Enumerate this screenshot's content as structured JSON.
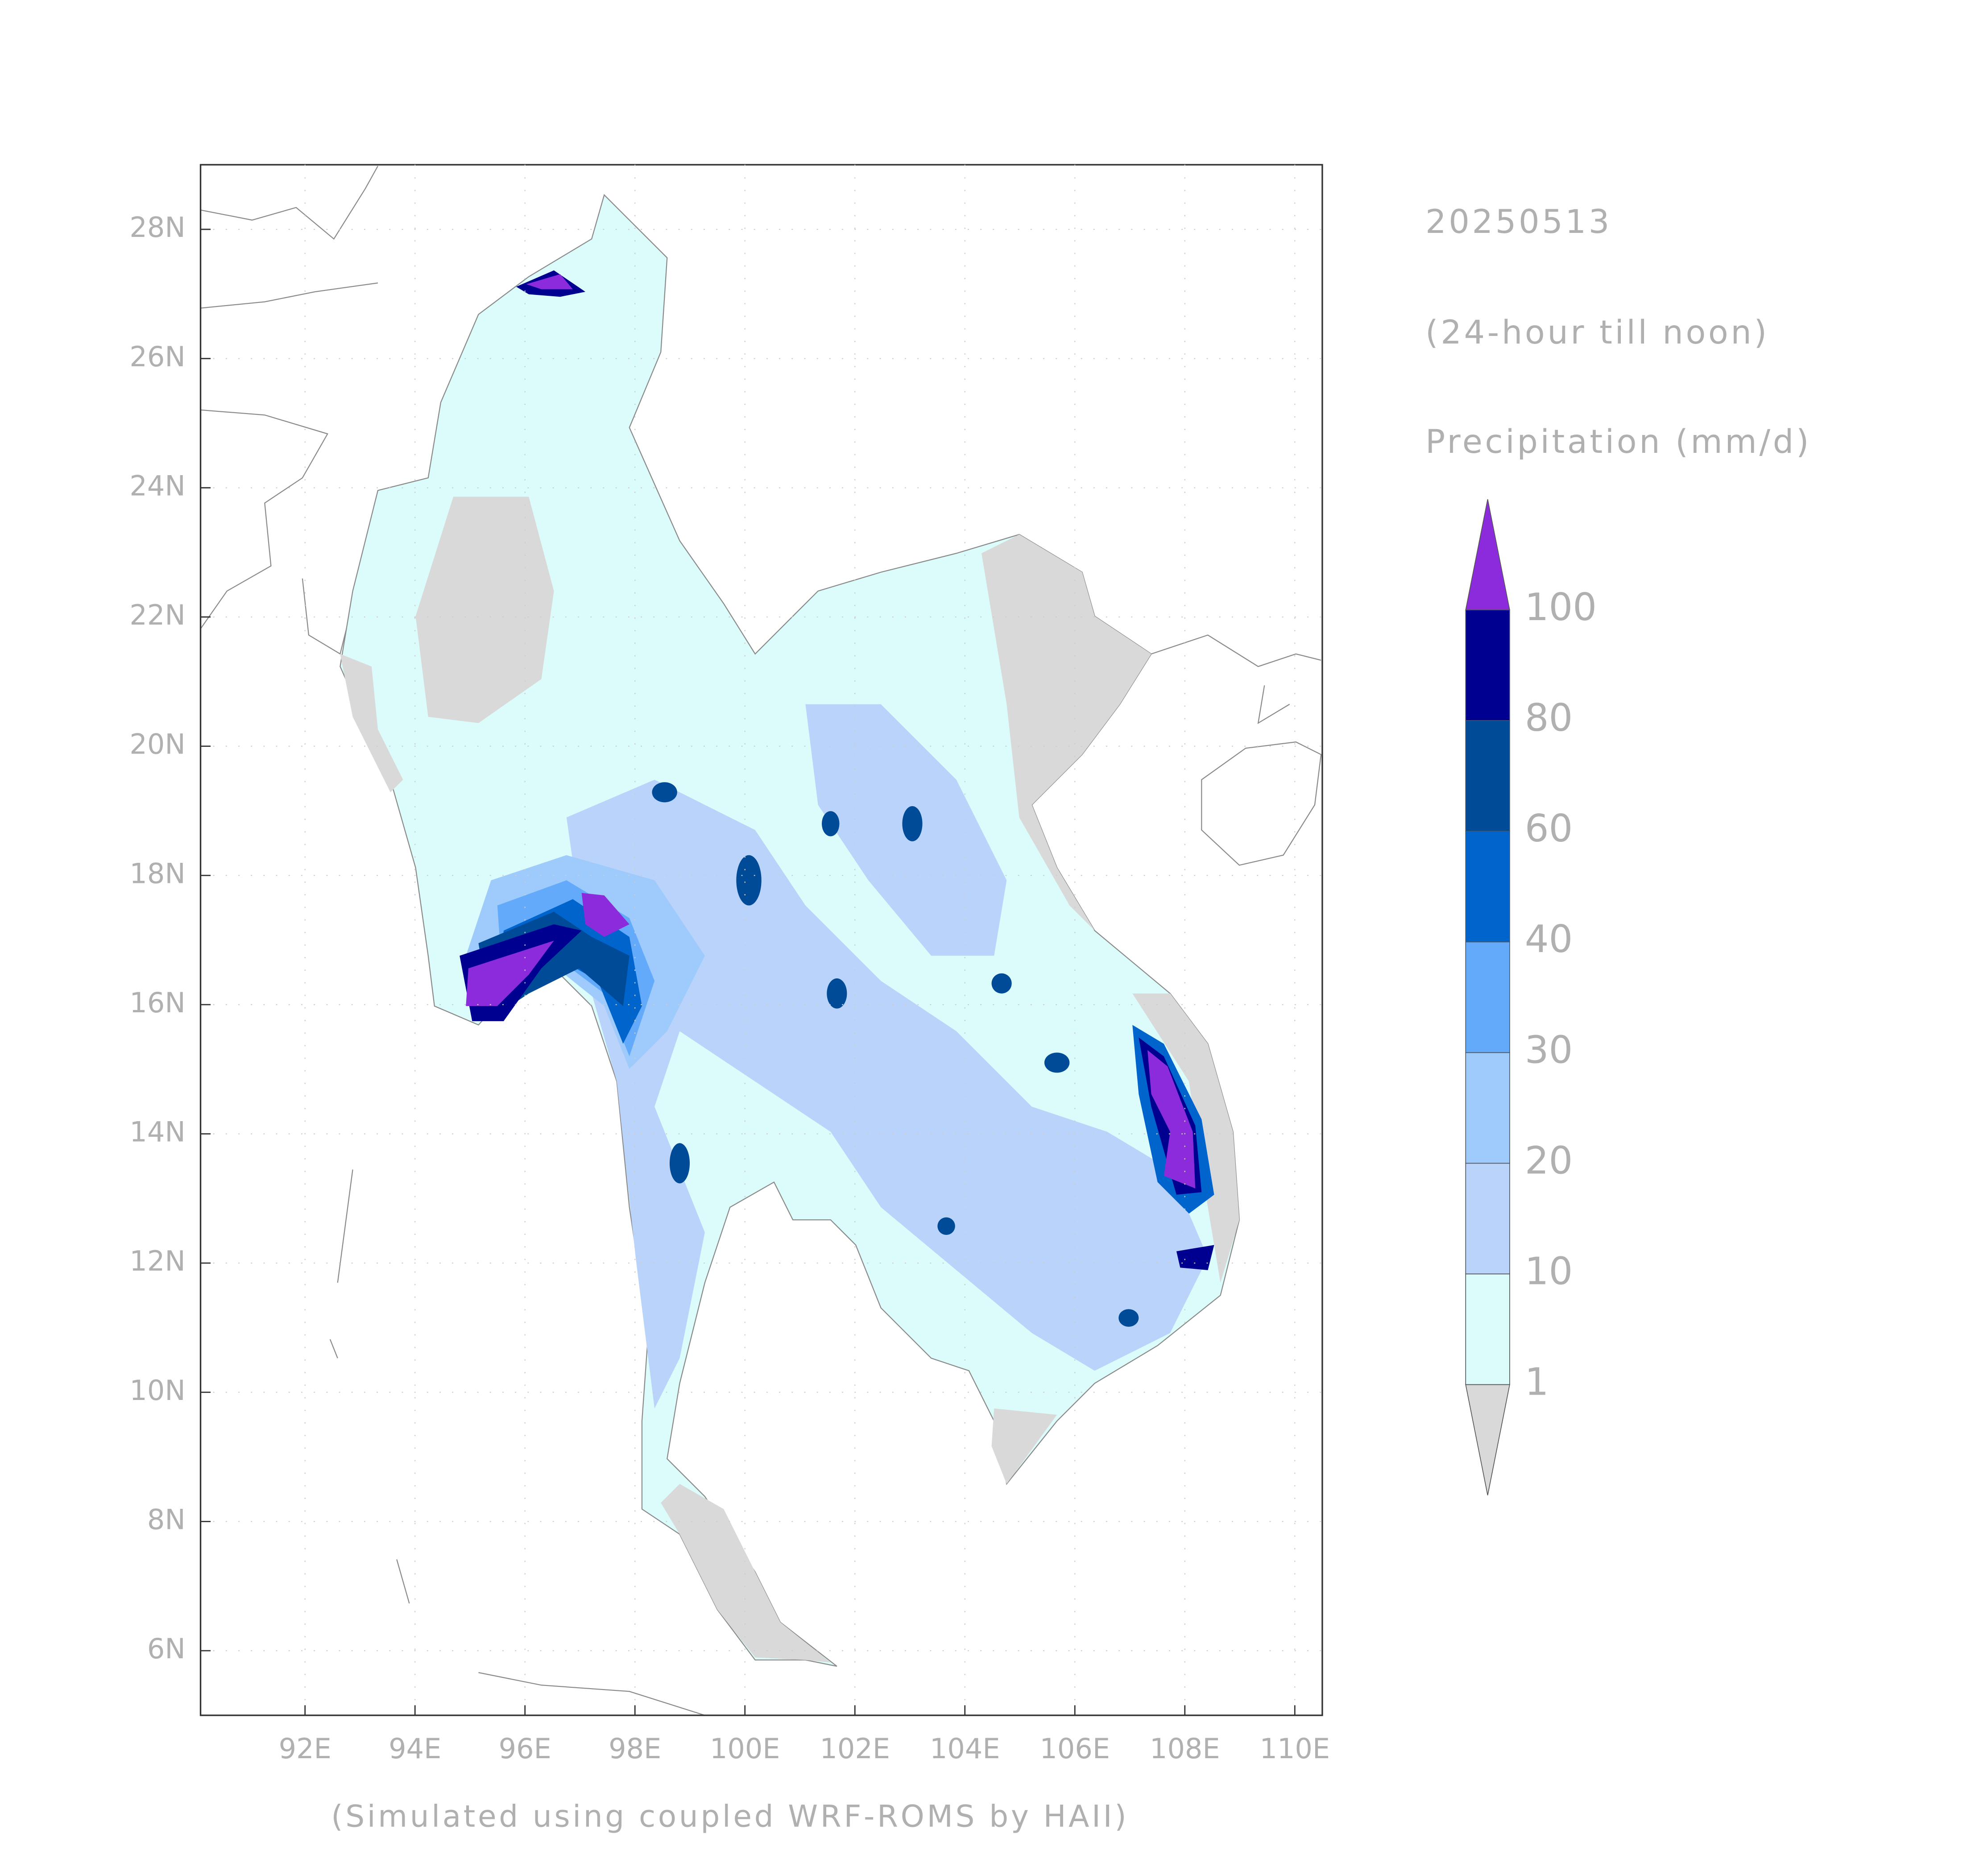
{
  "chart_data": {
    "type": "map",
    "title": "20250513",
    "subtitle": "(24-hour till noon)",
    "colorbar_title": "Precipitation (mm/d)",
    "footer": "(Simulated using coupled WRF-ROMS by HAII)",
    "xlim": [
      90.1,
      110.5
    ],
    "ylim": [
      5,
      29
    ],
    "xticks": [
      {
        "value": 92,
        "label": "92E"
      },
      {
        "value": 94,
        "label": "94E"
      },
      {
        "value": 96,
        "label": "96E"
      },
      {
        "value": 98,
        "label": "98E"
      },
      {
        "value": 100,
        "label": "100E"
      },
      {
        "value": 102,
        "label": "102E"
      },
      {
        "value": 104,
        "label": "104E"
      },
      {
        "value": 106,
        "label": "106E"
      },
      {
        "value": 108,
        "label": "108E"
      },
      {
        "value": 110,
        "label": "110E"
      }
    ],
    "yticks": [
      {
        "value": 6,
        "label": "6N"
      },
      {
        "value": 8,
        "label": "8N"
      },
      {
        "value": 10,
        "label": "10N"
      },
      {
        "value": 12,
        "label": "12N"
      },
      {
        "value": 14,
        "label": "14N"
      },
      {
        "value": 16,
        "label": "16N"
      },
      {
        "value": 18,
        "label": "18N"
      },
      {
        "value": 20,
        "label": "20N"
      },
      {
        "value": 22,
        "label": "22N"
      },
      {
        "value": 24,
        "label": "24N"
      },
      {
        "value": 26,
        "label": "26N"
      },
      {
        "value": 28,
        "label": "28N"
      }
    ],
    "grid": true,
    "colorbar": {
      "levels": [
        1,
        10,
        20,
        30,
        40,
        60,
        80,
        100
      ],
      "colors": [
        "#dcfcfc",
        "#b9d3fb",
        "#9ecbfc",
        "#64aafa",
        "#0064cd",
        "#004b98",
        "#000090"
      ],
      "under_color": "#d9d9d9",
      "over_color": "#8c2bdc"
    }
  }
}
